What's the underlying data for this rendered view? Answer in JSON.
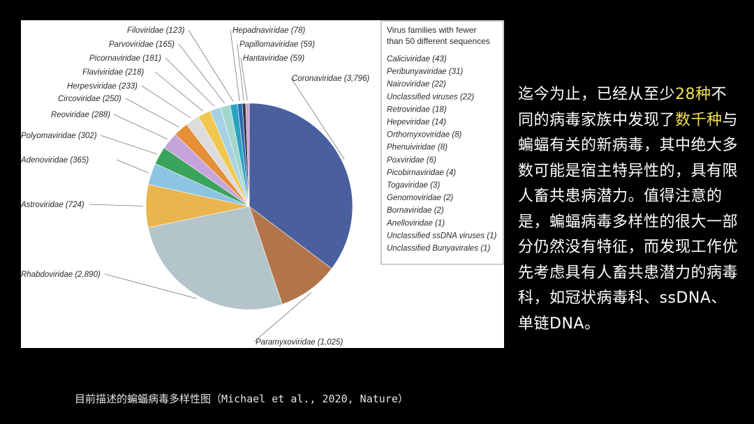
{
  "chart_data": {
    "type": "pie",
    "categories": [
      "Coronaviridae",
      "Paramyxoviridae",
      "Rhabdoviridae",
      "Astroviridae",
      "Adenoviridae",
      "Polyomaviridae",
      "Reoviridae",
      "Circoviridae",
      "Herpesviridae",
      "Flaviviridae",
      "Picornaviridae",
      "Parvoviridae",
      "Filoviridae",
      "Hepadnaviridae",
      "Papillomaviridae",
      "Hantaviridae"
    ],
    "values": [
      3796,
      1025,
      2890,
      724,
      365,
      302,
      288,
      250,
      233,
      218,
      181,
      165,
      123,
      78,
      59,
      59
    ],
    "labels": [
      "Coronaviridae (3,796)",
      "Paramyxoviridae (1,025)",
      "Rhabdoviridae (2,890)",
      "Astroviridae (724)",
      "Adenoviridae (365)",
      "Polyomaviridae (302)",
      "Reoviridae (288)",
      "Circoviridae (250)",
      "Herpesviridae (233)",
      "Flaviviridae (218)",
      "Picornaviridae (181)",
      "Parvoviridae (165)",
      "Filoviridae (123)",
      "Hepadnaviridae (78)",
      "Papillomaviridae (59)",
      "Hantaviridae (59)"
    ],
    "colors": [
      "#4a5f9e",
      "#b4744a",
      "#b3c4cb",
      "#e9b54f",
      "#8cc5e1",
      "#3aa45c",
      "#c5a4dc",
      "#e58f39",
      "#dcdcdc",
      "#f1c84f",
      "#a7d2e6",
      "#a3d7cc",
      "#2aa3c0",
      "#2c6db4",
      "#3a3a3a",
      "#c9a0d6"
    ],
    "legend": {
      "title_lines": [
        "Virus families with fewer",
        "than 50 different sequences"
      ],
      "items": [
        "Caliciviridae (43)",
        "Peribunyaviridae (31)",
        "Nairoviridae (22)",
        "Unclassified viruses (22)",
        "Retroviridae (18)",
        "Hepeviridae (14)",
        "Orthomyxoviridae (8)",
        "Phenuiviridae (8)",
        "Poxviridae (6)",
        "Picobirnaviridae (4)",
        "Togaviridae (3)",
        "Genomoviridae (2)",
        "Bornaviridae (2)",
        "Anelloviridae (1)",
        "Unclassified ssDNA viruses (1)",
        "Unclassified Bunyavirales (1)"
      ]
    }
  },
  "side_text": {
    "p1": "迄今为止，已经从至少",
    "h1": "28种",
    "p2": "不同的病毒家族中发现了",
    "h2": "数千种",
    "p3": "与蝙蝠有关的新病毒，其中绝大多数可能是宿主特异性的，具有限人畜共患病潜力。值得注意的是，蝙蝠病毒多样性的很大一部分仍然没有特征，而发现工作优先考虑具有人畜共患潜力的病毒科，如冠状病毒科、ssDNA、单链DNA。"
  },
  "caption": "目前描述的蝙蝠病毒多样性图（Michael et al., 2020, Nature）"
}
